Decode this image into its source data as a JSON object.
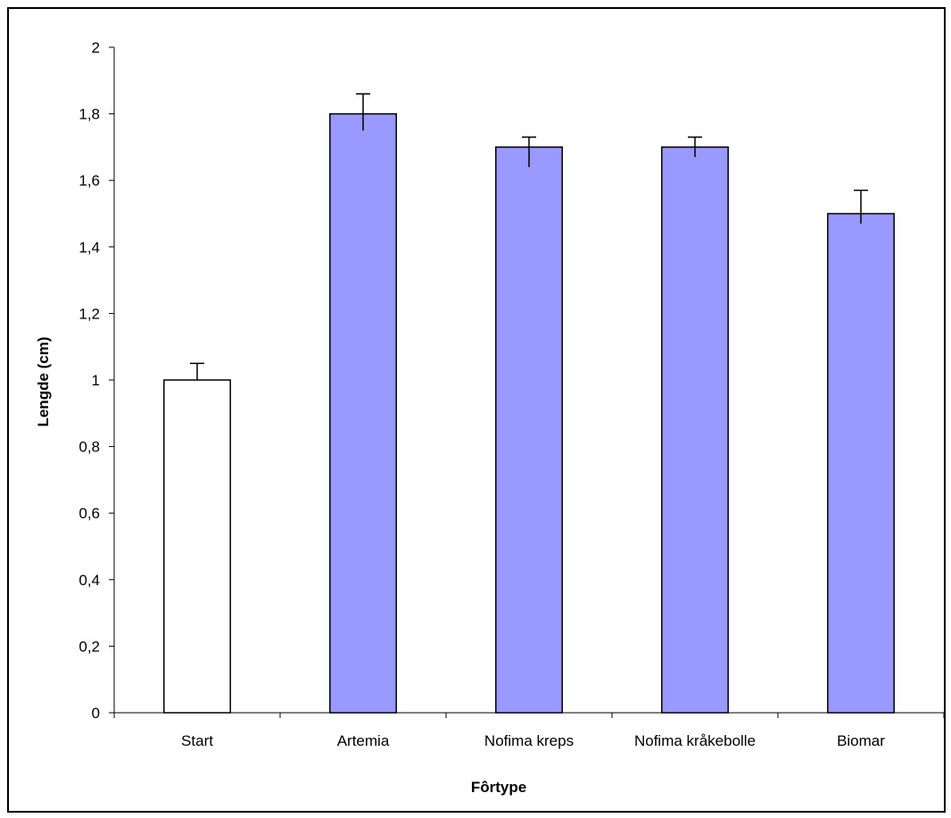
{
  "chart_data": {
    "type": "bar",
    "title": "",
    "xlabel": "Fôrtype",
    "ylabel": "Lengde (cm)",
    "categories": [
      "Start",
      "Artemia",
      "Nofima kreps",
      "Nofima kråkebolle",
      "Biomar"
    ],
    "values": [
      1.0,
      1.8,
      1.7,
      1.7,
      1.5
    ],
    "error_plus": [
      0.05,
      0.06,
      0.03,
      0.03,
      0.07
    ],
    "error_minus": [
      0.0,
      0.05,
      0.06,
      0.03,
      0.03
    ],
    "bar_colors": [
      "#ffffff",
      "#9999ff",
      "#9999ff",
      "#9999ff",
      "#9999ff"
    ],
    "ylim": [
      0,
      2
    ],
    "yticks": [
      0,
      0.2,
      0.4,
      0.6,
      0.8,
      1,
      1.2,
      1.4,
      1.6,
      1.8,
      2
    ],
    "ytick_labels": [
      "0",
      "0,2",
      "0,4",
      "0,6",
      "0,8",
      "1",
      "1,2",
      "1,4",
      "1,6",
      "1,8",
      "2"
    ],
    "grid": false,
    "legend": "none"
  }
}
